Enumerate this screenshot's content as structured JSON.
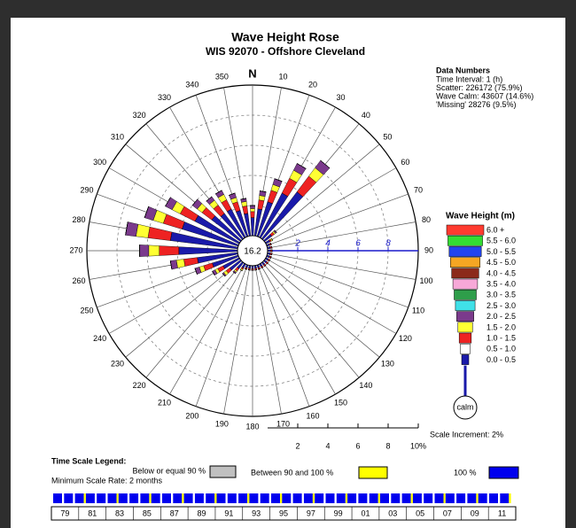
{
  "chart_data": {
    "type": "rose",
    "title": "Wave Height Rose",
    "subtitle": "WIS 92070 - Offshore Cleveland",
    "info_title": "Data Numbers",
    "info_lines": [
      "Time Interval: 1 (h)",
      "Scatter: 226172 (75.9%)",
      "Wave Calm: 43607 (14.6%)",
      "'Missing' 28276 (9.5%)"
    ],
    "directions": [
      "N",
      "10",
      "20",
      "30",
      "40",
      "50",
      "60",
      "70",
      "80",
      "90",
      "100",
      "110",
      "120",
      "130",
      "140",
      "150",
      "160",
      "170",
      "180",
      "190",
      "200",
      "210",
      "220",
      "230",
      "240",
      "250",
      "260",
      "270",
      "280",
      "290",
      "300",
      "310",
      "320",
      "330",
      "340",
      "350"
    ],
    "center_label": 16.2,
    "calm_label": "calm",
    "rlim": [
      0,
      10
    ],
    "rticks": [
      2,
      4,
      6,
      8,
      {
        "value": 10,
        "label": "10%"
      }
    ],
    "scale_note": "Scale Increment: 2%",
    "legend_title": "Wave Height (m)",
    "series": [
      {
        "name": "6.0 +",
        "color": "#ff3b30",
        "values": [
          0,
          0,
          0,
          0,
          0,
          0,
          0,
          0,
          0,
          0,
          0,
          0,
          0,
          0,
          0,
          0,
          0,
          0,
          0,
          0,
          0,
          0,
          0,
          0,
          0,
          0,
          0,
          0,
          0,
          0,
          0,
          0,
          0,
          0,
          0,
          0
        ]
      },
      {
        "name": "5.5 - 6.0",
        "color": "#33dd33",
        "values": [
          0,
          0,
          0,
          0,
          0,
          0,
          0,
          0,
          0,
          0,
          0,
          0,
          0,
          0,
          0,
          0,
          0,
          0,
          0,
          0,
          0,
          0,
          0,
          0,
          0,
          0,
          0,
          0,
          0,
          0,
          0,
          0,
          0,
          0,
          0,
          0
        ]
      },
      {
        "name": "5.0 - 5.5",
        "color": "#2244ee",
        "values": [
          0,
          0,
          0,
          0,
          0,
          0,
          0,
          0,
          0,
          0,
          0,
          0,
          0,
          0,
          0,
          0,
          0,
          0,
          0,
          0,
          0,
          0,
          0,
          0,
          0,
          0,
          0,
          0,
          0,
          0,
          0,
          0,
          0,
          0,
          0,
          0
        ]
      },
      {
        "name": "4.5 - 5.0",
        "color": "#f5a623",
        "values": [
          0,
          0,
          0,
          0,
          0,
          0,
          0,
          0,
          0,
          0,
          0,
          0,
          0,
          0,
          0,
          0,
          0,
          0,
          0,
          0,
          0,
          0,
          0,
          0,
          0,
          0,
          0,
          0,
          0,
          0,
          0,
          0,
          0,
          0,
          0,
          0
        ]
      },
      {
        "name": "4.0 - 4.5",
        "color": "#8b2a1a",
        "values": [
          0,
          0,
          0,
          0,
          0,
          0,
          0,
          0,
          0,
          0,
          0,
          0,
          0,
          0,
          0,
          0,
          0,
          0,
          0,
          0,
          0,
          0,
          0,
          0,
          0,
          0,
          0,
          0,
          0,
          0,
          0,
          0,
          0,
          0,
          0,
          0
        ]
      },
      {
        "name": "3.5 - 4.0",
        "color": "#f7a8d8",
        "values": [
          0,
          0,
          0,
          0,
          0,
          0,
          0,
          0,
          0,
          0,
          0,
          0,
          0,
          0,
          0,
          0,
          0,
          0,
          0,
          0,
          0,
          0,
          0,
          0,
          0,
          0,
          0,
          0,
          0,
          0,
          0,
          0,
          0,
          0,
          0,
          0
        ]
      },
      {
        "name": "3.0 - 3.5",
        "color": "#2e9e4a",
        "values": [
          0,
          0,
          0,
          0,
          0,
          0,
          0,
          0,
          0,
          0,
          0,
          0,
          0,
          0,
          0,
          0,
          0,
          0,
          0,
          0,
          0,
          0,
          0,
          0,
          0,
          0,
          0,
          0,
          0,
          0,
          0,
          0,
          0,
          0,
          0,
          0
        ]
      },
      {
        "name": "2.5 - 3.0",
        "color": "#40e0e8",
        "values": [
          0,
          0,
          0,
          0,
          0,
          0,
          0,
          0,
          0,
          0,
          0,
          0,
          0,
          0,
          0,
          0,
          0,
          0,
          0,
          0,
          0,
          0,
          0,
          0,
          0,
          0,
          0,
          0,
          0,
          0,
          0,
          0,
          0,
          0,
          0,
          0
        ]
      },
      {
        "name": "2.0 - 2.5",
        "color": "#7b3a8c",
        "values": [
          0.2,
          0.3,
          0.4,
          0.5,
          0.6,
          0.1,
          0,
          0,
          0,
          0,
          0,
          0,
          0,
          0,
          0,
          0,
          0,
          0,
          0,
          0,
          0,
          0,
          0.1,
          0.1,
          0.2,
          0.3,
          0.4,
          0.6,
          0.7,
          0.6,
          0.5,
          0.4,
          0.3,
          0.3,
          0.3,
          0.2
        ]
      },
      {
        "name": "1.5 - 2.0",
        "color": "#ffff33",
        "values": [
          0.2,
          0.3,
          0.4,
          0.6,
          0.7,
          0.1,
          0.1,
          0,
          0,
          0,
          0,
          0,
          0,
          0,
          0,
          0,
          0,
          0,
          0,
          0,
          0,
          0.1,
          0.1,
          0.2,
          0.2,
          0.3,
          0.5,
          0.7,
          0.8,
          0.7,
          0.6,
          0.4,
          0.4,
          0.4,
          0.3,
          0.3
        ]
      },
      {
        "name": "1.0 - 1.5",
        "color": "#ee2222",
        "values": [
          0.4,
          0.6,
          0.8,
          1.1,
          1.3,
          0.2,
          0.1,
          0.1,
          0.1,
          0.1,
          0.1,
          0.1,
          0.1,
          0.1,
          0.1,
          0.1,
          0.1,
          0.1,
          0.1,
          0.1,
          0.1,
          0.1,
          0.2,
          0.3,
          0.4,
          0.6,
          0.9,
          1.3,
          1.5,
          1.3,
          1.1,
          0.8,
          0.7,
          0.7,
          0.6,
          0.5
        ]
      },
      {
        "name": "0.5 - 1.0",
        "color": "#ffffff",
        "values": [
          0,
          0,
          0,
          0,
          0,
          0,
          0,
          0,
          0,
          0,
          0,
          0,
          0,
          0,
          0,
          0,
          0,
          0,
          0,
          0,
          0,
          0,
          0,
          0,
          0,
          0,
          0,
          0,
          0,
          0,
          0,
          0,
          0,
          0,
          0,
          0
        ]
      },
      {
        "name": "0.0 - 0.5",
        "color": "#1a1aaa",
        "values": [
          1.2,
          1.8,
          2.4,
          3.3,
          3.9,
          0.6,
          0.3,
          0.2,
          0.2,
          0.2,
          0.2,
          0.2,
          0.2,
          0.2,
          0.2,
          0.2,
          0.2,
          0.2,
          0.2,
          0.2,
          0.2,
          0.3,
          0.5,
          0.9,
          1.2,
          1.8,
          2.7,
          3.9,
          4.5,
          3.9,
          3.3,
          2.4,
          2.1,
          2.1,
          1.8,
          1.5
        ]
      }
    ],
    "time_legend": {
      "title": "Time Scale Legend:",
      "low": "Below or equal 90 %",
      "rate": "Minimum Scale Rate: 2 months",
      "mid": "Between 90 and 100 %",
      "full": "100 %",
      "colors": [
        "#c0c0c0",
        "#ffff00",
        "#0000ee"
      ]
    },
    "years": [
      "79",
      "81",
      "83",
      "85",
      "87",
      "89",
      "91",
      "93",
      "95",
      "97",
      "99",
      "01",
      "03",
      "05",
      "07",
      "09",
      "11"
    ]
  }
}
